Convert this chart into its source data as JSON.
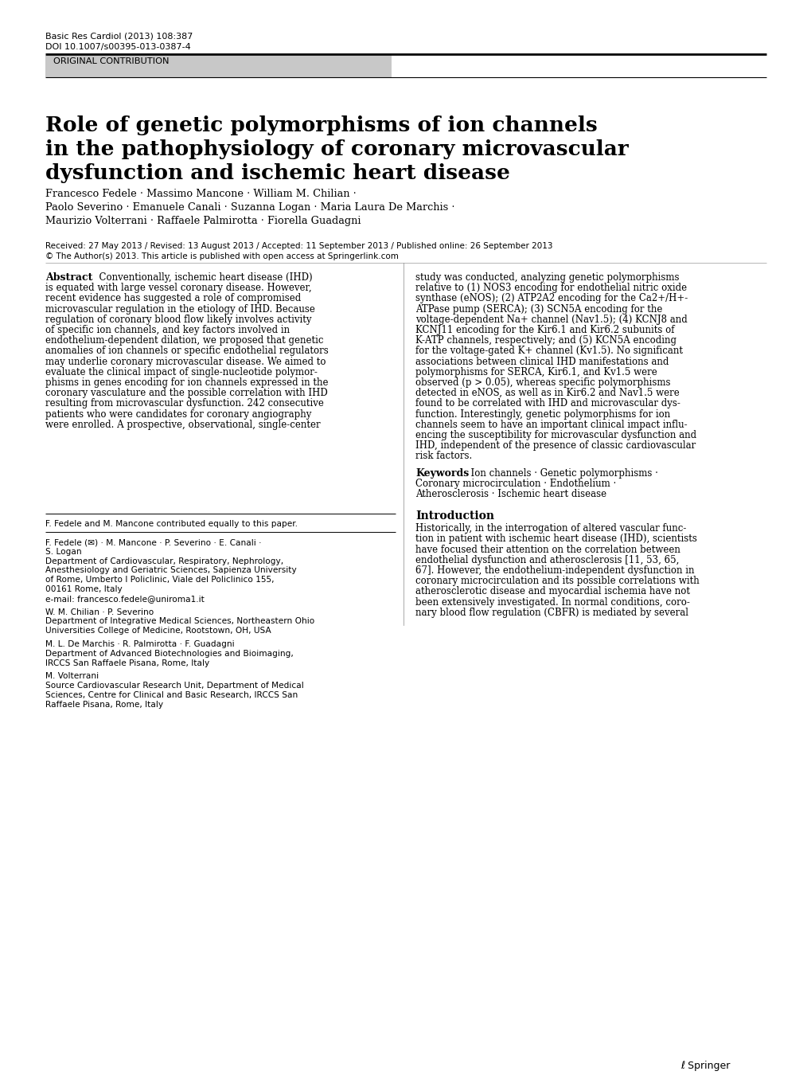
{
  "journal_line1": "Basic Res Cardiol (2013) 108:387",
  "journal_line2": "DOI 10.1007/s00395-013-0387-4",
  "section_label": "ORIGINAL CONTRIBUTION",
  "title_line1": "Role of genetic polymorphisms of ion channels",
  "title_line2": "in the pathophysiology of coronary microvascular",
  "title_line3": "dysfunction and ischemic heart disease",
  "authors_line1": "Francesco Fedele · Massimo Mancone · William M. Chilian ·",
  "authors_line2": "Paolo Severino · Emanuele Canali · Suzanna Logan · Maria Laura De Marchis ·",
  "authors_line3": "Maurizio Volterrani · Raffaele Palmirotta · Fiorella Guadagni",
  "received_line": "Received: 27 May 2013 / Revised: 13 August 2013 / Accepted: 11 September 2013 / Published online: 26 September 2013",
  "copyright_line": "© The Author(s) 2013. This article is published with open access at Springerlink.com",
  "footnote_equal": "F. Fedele and M. Mancone contributed equally to this paper.",
  "fn2": "F. Fedele (✉) · M. Mancone · P. Severino · E. Canali ·",
  "fn3": "S. Logan",
  "fn4": "Department of Cardiovascular, Respiratory, Nephrology,",
  "fn5": "Anesthesiology and Geriatric Sciences, Sapienza University",
  "fn6": "of Rome, Umberto I Policlinic, Viale del Policlinico 155,",
  "fn7": "00161 Rome, Italy",
  "fn8": "e-mail: francesco.fedele@uniroma1.it",
  "fn9": "W. M. Chilian · P. Severino",
  "fn10": "Department of Integrative Medical Sciences, Northeastern Ohio",
  "fn11": "Universities College of Medicine, Rootstown, OH, USA",
  "fn12": "M. L. De Marchis · R. Palmirotta · F. Guadagni",
  "fn13": "Department of Advanced Biotechnologies and Bioimaging,",
  "fn14": "IRCCS San Raffaele Pisana, Rome, Italy",
  "fn15": "M. Volterrani",
  "fn16": "Source Cardiovascular Research Unit, Department of Medical",
  "fn17": "Sciences, Centre for Clinical and Basic Research, IRCCS San",
  "fn18": "Raffaele Pisana, Rome, Italy",
  "springer_icon": "ℓ Springer",
  "bg_color": "#ffffff",
  "section_bg": "#c8c8c8",
  "left_abstract_lines": [
    "Conventionally, ischemic heart disease (IHD)",
    "is equated with large vessel coronary disease. However,",
    "recent evidence has suggested a role of compromised",
    "microvascular regulation in the etiology of IHD. Because",
    "regulation of coronary blood flow likely involves activity",
    "of specific ion channels, and key factors involved in",
    "endothelium-dependent dilation, we proposed that genetic",
    "anomalies of ion channels or specific endothelial regulators",
    "may underlie coronary microvascular disease. We aimed to",
    "evaluate the clinical impact of single-nucleotide polymor-",
    "phisms in genes encoding for ion channels expressed in the",
    "coronary vasculature and the possible correlation with IHD",
    "resulting from microvascular dysfunction. 242 consecutive",
    "patients who were candidates for coronary angiography",
    "were enrolled. A prospective, observational, single-center"
  ],
  "right_abstract_lines": [
    "study was conducted, analyzing genetic polymorphisms",
    "relative to (1) NOS3 encoding for endothelial nitric oxide",
    "synthase (eNOS); (2) ATP2A2 encoding for the Ca2+/H+-",
    "ATPase pump (SERCA); (3) SCN5A encoding for the",
    "voltage-dependent Na+ channel (Nav1.5); (4) KCNJ8 and",
    "KCNJ11 encoding for the Kir6.1 and Kir6.2 subunits of",
    "K-ATP channels, respectively; and (5) KCN5A encoding",
    "for the voltage-gated K+ channel (Kv1.5). No significant",
    "associations between clinical IHD manifestations and",
    "polymorphisms for SERCA, Kir6.1, and Kv1.5 were",
    "observed (p > 0.05), whereas specific polymorphisms",
    "detected in eNOS, as well as in Kir6.2 and Nav1.5 were",
    "found to be correlated with IHD and microvascular dys-",
    "function. Interestingly, genetic polymorphisms for ion",
    "channels seem to have an important clinical impact influ-",
    "encing the susceptibility for microvascular dysfunction and",
    "IHD, independent of the presence of classic cardiovascular",
    "risk factors."
  ],
  "keywords_line1": "Ion channels · Genetic polymorphisms ·",
  "keywords_line2": "Coronary microcirculation · Endothelium ·",
  "keywords_line3": "Atherosclerosis · Ischemic heart disease",
  "intro_lines": [
    "Historically, in the interrogation of altered vascular func-",
    "tion in patient with ischemic heart disease (IHD), scientists",
    "have focused their attention on the correlation between",
    "endothelial dysfunction and atherosclerosis [11, 53, 65,",
    "67]. However, the endothelium-independent dysfunction in",
    "coronary microcirculation and its possible correlations with",
    "atherosclerotic disease and myocardial ischemia have not",
    "been extensively investigated. In normal conditions, coro-",
    "nary blood flow regulation (CBFR) is mediated by several"
  ]
}
